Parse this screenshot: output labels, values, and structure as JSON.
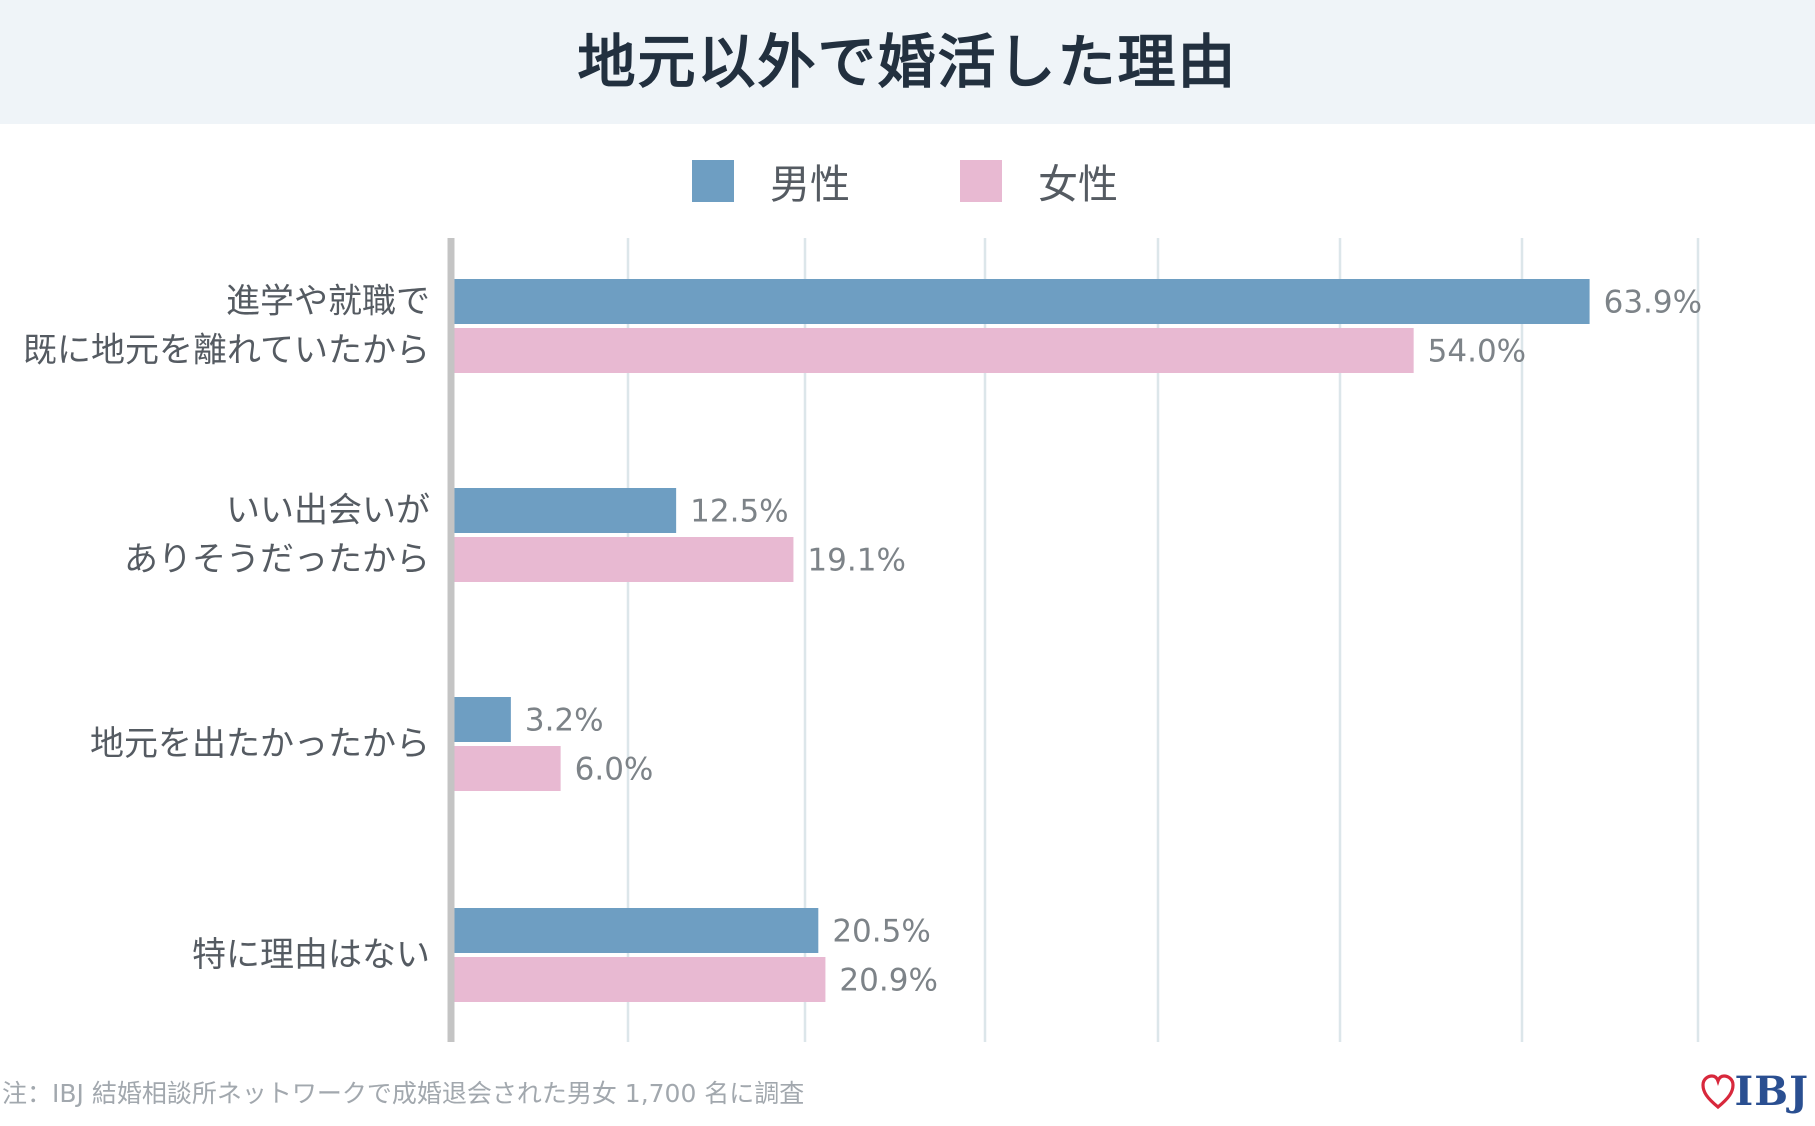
{
  "title": "地元以外で婚活した理由",
  "colors": {
    "male": "#6e9ec2",
    "female": "#e8b9d2",
    "axis": "#c4c4c4",
    "grid": "#dce6ea"
  },
  "legend": [
    {
      "label": "男性",
      "color": "#6e9ec2"
    },
    {
      "label": "女性",
      "color": "#e8b9d2"
    }
  ],
  "chart_data": {
    "type": "bar",
    "orientation": "horizontal",
    "categories": [
      [
        "進学や就職で",
        "既に地元を離れていたから"
      ],
      [
        "いい出会いが",
        "ありそうだったから"
      ],
      [
        "地元を出たかったから"
      ],
      [
        "特に理由はない"
      ]
    ],
    "series": [
      {
        "name": "男性",
        "values": [
          63.9,
          12.5,
          3.2,
          20.5
        ],
        "labels": [
          "63.9%",
          "12.5%",
          "3.2%",
          "20.5%"
        ]
      },
      {
        "name": "女性",
        "values": [
          54.0,
          19.1,
          6.0,
          20.9
        ],
        "labels": [
          "54.0%",
          "19.1%",
          "6.0%",
          "20.9%"
        ]
      }
    ],
    "xlim": [
      0,
      70
    ],
    "grid": true,
    "legend_position": "top"
  },
  "footnote": "注：IBJ 結婚相談所ネットワークで成婚退会された男女 1,700 名に調査",
  "logo_text": "IBJ"
}
